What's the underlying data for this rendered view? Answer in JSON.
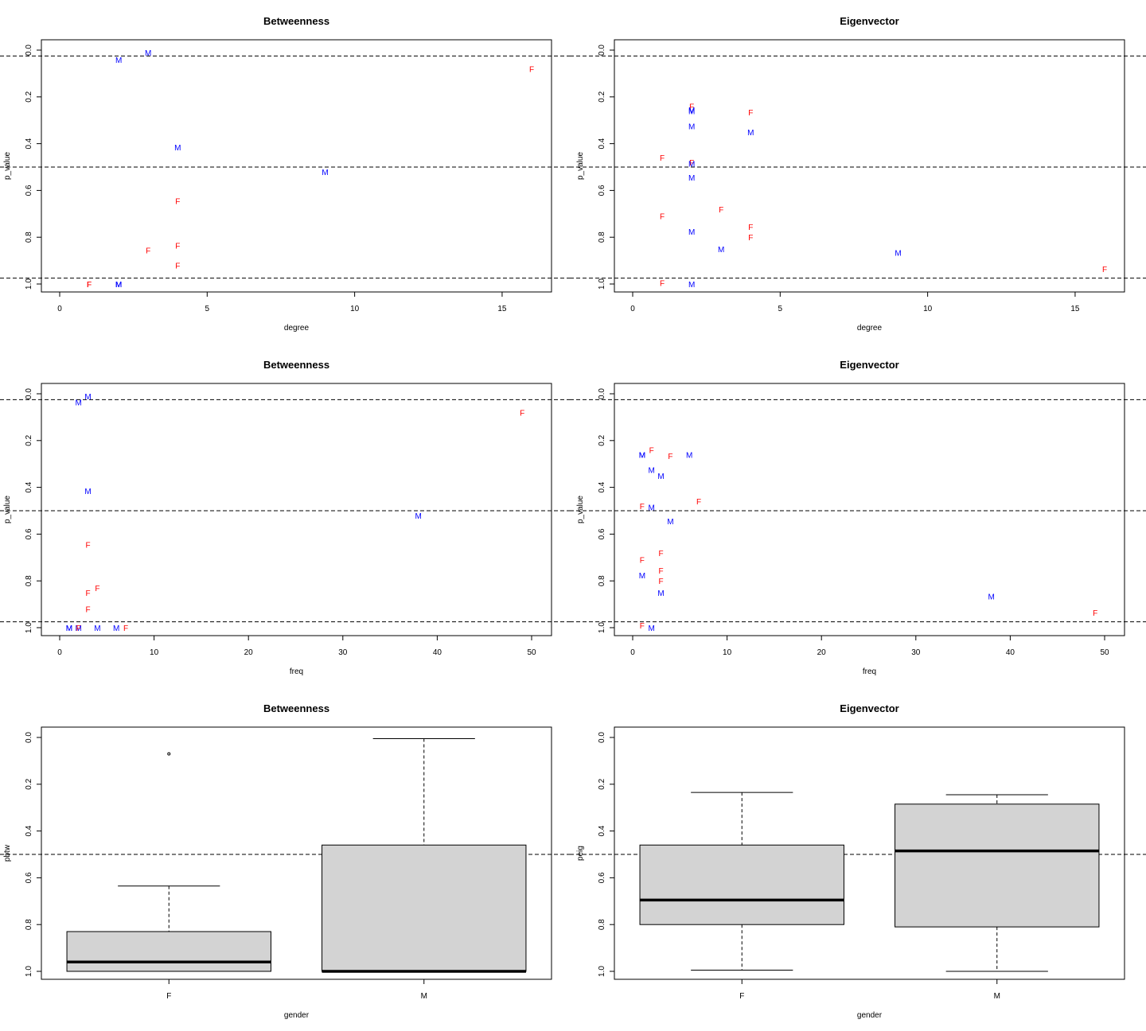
{
  "colors": {
    "F": "#ff0000",
    "M": "#0000ff",
    "box_fill": "#d3d3d3",
    "line": "#000000"
  },
  "chart_data": [
    {
      "type": "scatter",
      "title": "Betweenness",
      "xlabel": "degree",
      "ylabel": "p_value",
      "xlim": [
        0,
        16
      ],
      "ylim": [
        0,
        1
      ],
      "y_reversed": true,
      "xticks": [
        0,
        5,
        10,
        15
      ],
      "yticks": [
        0.0,
        0.2,
        0.4,
        0.6,
        0.8,
        1.0
      ],
      "ytick_labels": [
        "0.0",
        "0.2",
        "0.4",
        "0.6",
        "0.8",
        "1.0"
      ],
      "hlines": [
        0.025,
        0.5,
        0.975
      ],
      "points": [
        {
          "x": 3,
          "y": 0.01,
          "label": "M"
        },
        {
          "x": 2,
          "y": 0.04,
          "label": "M"
        },
        {
          "x": 16,
          "y": 0.08,
          "label": "F"
        },
        {
          "x": 4,
          "y": 0.415,
          "label": "M"
        },
        {
          "x": 9,
          "y": 0.52,
          "label": "M"
        },
        {
          "x": 4,
          "y": 0.645,
          "label": "F"
        },
        {
          "x": 4,
          "y": 0.835,
          "label": "F"
        },
        {
          "x": 3,
          "y": 0.855,
          "label": "F"
        },
        {
          "x": 4,
          "y": 0.92,
          "label": "F"
        },
        {
          "x": 1,
          "y": 1.0,
          "label": "F"
        },
        {
          "x": 1,
          "y": 1.0,
          "label": "F"
        },
        {
          "x": 2,
          "y": 1.0,
          "label": "M"
        },
        {
          "x": 2,
          "y": 1.0,
          "label": "M"
        },
        {
          "x": 2,
          "y": 1.0,
          "label": "M"
        }
      ]
    },
    {
      "type": "scatter",
      "title": "Eigenvector",
      "xlabel": "degree",
      "ylabel": "p_value",
      "xlim": [
        0,
        16
      ],
      "ylim": [
        0,
        1
      ],
      "y_reversed": true,
      "xticks": [
        0,
        5,
        10,
        15
      ],
      "yticks": [
        0.0,
        0.2,
        0.4,
        0.6,
        0.8,
        1.0
      ],
      "ytick_labels": [
        "0.0",
        "0.2",
        "0.4",
        "0.6",
        "0.8",
        "1.0"
      ],
      "hlines": [
        0.025,
        0.5,
        0.975
      ],
      "points": [
        {
          "x": 2,
          "y": 0.24,
          "label": "F"
        },
        {
          "x": 2,
          "y": 0.255,
          "label": "M"
        },
        {
          "x": 2,
          "y": 0.26,
          "label": "M"
        },
        {
          "x": 4,
          "y": 0.265,
          "label": "F"
        },
        {
          "x": 2,
          "y": 0.325,
          "label": "M"
        },
        {
          "x": 4,
          "y": 0.35,
          "label": "M"
        },
        {
          "x": 1,
          "y": 0.46,
          "label": "F"
        },
        {
          "x": 2,
          "y": 0.48,
          "label": "F"
        },
        {
          "x": 2,
          "y": 0.485,
          "label": "M"
        },
        {
          "x": 2,
          "y": 0.545,
          "label": "M"
        },
        {
          "x": 3,
          "y": 0.68,
          "label": "F"
        },
        {
          "x": 1,
          "y": 0.71,
          "label": "F"
        },
        {
          "x": 4,
          "y": 0.755,
          "label": "F"
        },
        {
          "x": 2,
          "y": 0.775,
          "label": "M"
        },
        {
          "x": 4,
          "y": 0.8,
          "label": "F"
        },
        {
          "x": 3,
          "y": 0.85,
          "label": "M"
        },
        {
          "x": 9,
          "y": 0.865,
          "label": "M"
        },
        {
          "x": 16,
          "y": 0.935,
          "label": "F"
        },
        {
          "x": 1,
          "y": 0.995,
          "label": "F"
        },
        {
          "x": 2,
          "y": 1.0,
          "label": "M"
        }
      ]
    },
    {
      "type": "scatter",
      "title": "Betweenness",
      "xlabel": "freq",
      "ylabel": "p_value",
      "xlim": [
        0,
        50
      ],
      "ylim": [
        0,
        1
      ],
      "y_reversed": true,
      "xticks": [
        0,
        10,
        20,
        30,
        40,
        50
      ],
      "yticks": [
        0.0,
        0.2,
        0.4,
        0.6,
        0.8,
        1.0
      ],
      "ytick_labels": [
        "0.0",
        "0.2",
        "0.4",
        "0.6",
        "0.8",
        "1.0"
      ],
      "hlines": [
        0.025,
        0.5,
        0.975
      ],
      "points": [
        {
          "x": 3,
          "y": 0.01,
          "label": "M"
        },
        {
          "x": 2,
          "y": 0.035,
          "label": "M"
        },
        {
          "x": 49,
          "y": 0.08,
          "label": "F"
        },
        {
          "x": 3,
          "y": 0.415,
          "label": "M"
        },
        {
          "x": 38,
          "y": 0.52,
          "label": "M"
        },
        {
          "x": 3,
          "y": 0.645,
          "label": "F"
        },
        {
          "x": 4,
          "y": 0.83,
          "label": "F"
        },
        {
          "x": 3,
          "y": 0.85,
          "label": "F"
        },
        {
          "x": 3,
          "y": 0.92,
          "label": "F"
        },
        {
          "x": 1,
          "y": 1.0,
          "label": "M"
        },
        {
          "x": 1,
          "y": 1.0,
          "label": "M"
        },
        {
          "x": 2,
          "y": 1.0,
          "label": "M"
        },
        {
          "x": 2,
          "y": 1.0,
          "label": "F"
        },
        {
          "x": 4,
          "y": 1.0,
          "label": "M"
        },
        {
          "x": 6,
          "y": 1.0,
          "label": "M"
        },
        {
          "x": 7,
          "y": 1.0,
          "label": "F"
        }
      ]
    },
    {
      "type": "scatter",
      "title": "Eigenvector",
      "xlabel": "freq",
      "ylabel": "p_value",
      "xlim": [
        0,
        50
      ],
      "ylim": [
        0,
        1
      ],
      "y_reversed": true,
      "xticks": [
        0,
        10,
        20,
        30,
        40,
        50
      ],
      "yticks": [
        0.0,
        0.2,
        0.4,
        0.6,
        0.8,
        1.0
      ],
      "ytick_labels": [
        "0.0",
        "0.2",
        "0.4",
        "0.6",
        "0.8",
        "1.0"
      ],
      "hlines": [
        0.025,
        0.5,
        0.975
      ],
      "points": [
        {
          "x": 2,
          "y": 0.24,
          "label": "F"
        },
        {
          "x": 1,
          "y": 0.26,
          "label": "M"
        },
        {
          "x": 1,
          "y": 0.26,
          "label": "M"
        },
        {
          "x": 4,
          "y": 0.265,
          "label": "F"
        },
        {
          "x": 6,
          "y": 0.26,
          "label": "M"
        },
        {
          "x": 2,
          "y": 0.325,
          "label": "M"
        },
        {
          "x": 3,
          "y": 0.35,
          "label": "M"
        },
        {
          "x": 7,
          "y": 0.46,
          "label": "F"
        },
        {
          "x": 1,
          "y": 0.48,
          "label": "F"
        },
        {
          "x": 2,
          "y": 0.485,
          "label": "M"
        },
        {
          "x": 4,
          "y": 0.545,
          "label": "M"
        },
        {
          "x": 3,
          "y": 0.68,
          "label": "F"
        },
        {
          "x": 1,
          "y": 0.71,
          "label": "F"
        },
        {
          "x": 3,
          "y": 0.755,
          "label": "F"
        },
        {
          "x": 1,
          "y": 0.775,
          "label": "M"
        },
        {
          "x": 3,
          "y": 0.8,
          "label": "F"
        },
        {
          "x": 3,
          "y": 0.85,
          "label": "M"
        },
        {
          "x": 38,
          "y": 0.865,
          "label": "M"
        },
        {
          "x": 49,
          "y": 0.935,
          "label": "F"
        },
        {
          "x": 1,
          "y": 0.99,
          "label": "F"
        },
        {
          "x": 2,
          "y": 1.0,
          "label": "M"
        }
      ]
    },
    {
      "type": "boxplot",
      "title": "Betweenness",
      "xlabel": "gender",
      "ylabel": "pbtw",
      "ylim": [
        0,
        1
      ],
      "y_reversed": true,
      "yticks": [
        0.0,
        0.2,
        0.4,
        0.6,
        0.8,
        1.0
      ],
      "ytick_labels": [
        "0.0",
        "0.2",
        "0.4",
        "0.6",
        "0.8",
        "1.0"
      ],
      "hlines": [
        0.5
      ],
      "groups": [
        {
          "name": "F",
          "whisker_low": 0.635,
          "q1": 0.83,
          "median": 0.96,
          "q3": 1.0,
          "whisker_high": 1.0,
          "outliers": [
            0.07
          ]
        },
        {
          "name": "M",
          "whisker_low": 0.005,
          "q1": 0.46,
          "median": 1.0,
          "q3": 1.0,
          "whisker_high": 1.0,
          "outliers": []
        }
      ]
    },
    {
      "type": "boxplot",
      "title": "Eigenvector",
      "xlabel": "gender",
      "ylabel": "peig",
      "ylim": [
        0,
        1
      ],
      "y_reversed": true,
      "yticks": [
        0.0,
        0.2,
        0.4,
        0.6,
        0.8,
        1.0
      ],
      "ytick_labels": [
        "0.0",
        "0.2",
        "0.4",
        "0.6",
        "0.8",
        "1.0"
      ],
      "hlines": [
        0.5
      ],
      "groups": [
        {
          "name": "F",
          "whisker_low": 0.235,
          "q1": 0.46,
          "median": 0.695,
          "q3": 0.8,
          "whisker_high": 0.995,
          "outliers": []
        },
        {
          "name": "M",
          "whisker_low": 0.245,
          "q1": 0.285,
          "median": 0.485,
          "q3": 0.81,
          "whisker_high": 1.0,
          "outliers": []
        }
      ]
    }
  ]
}
